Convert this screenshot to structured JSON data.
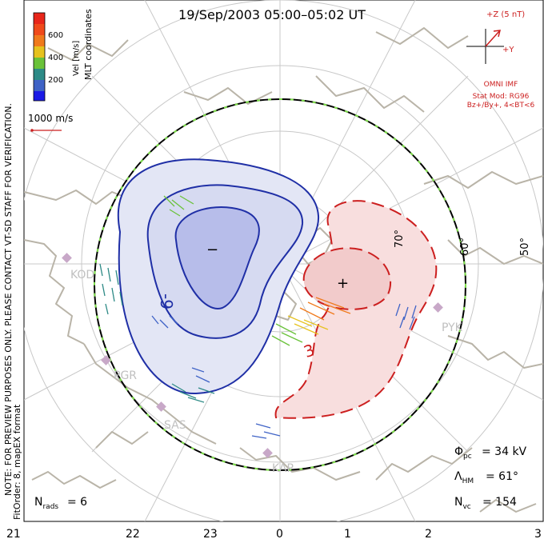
{
  "title": "19/Sep/2003 05:00–05:02 UT",
  "color_scale": {
    "label": "Vel [m/s]",
    "ticks": [
      "600",
      "400",
      "200"
    ],
    "colors": [
      "#e8261a",
      "#f07a1c",
      "#e6c21e",
      "#6ac23a",
      "#2d8a86",
      "#3f63c6",
      "#1a1ae6"
    ]
  },
  "coords_label": "MLT coordinates",
  "vector_scale_label": "1000 m/s",
  "side_note_1": "NOTE: FOR PREVIEW PURPOSES ONLY. PLEASE CONTACT VT-SD STAFF FOR VERIFICATION.",
  "side_note_2": "FitOrder: 8, mapEX format",
  "imf": {
    "z_label": "+Z (5 nT)",
    "y_label": "+Y",
    "source": "OMNI IMF",
    "stat_mod": "Stat Mod: RG96",
    "condition": "Bz+/By+, 4<BT<6"
  },
  "stats": {
    "phi_pc": "= 34 kV",
    "lambda_hm": "= 61°",
    "n_vc": "= 154",
    "n_rads": "= 6"
  },
  "mlt_axis": [
    "21",
    "22",
    "23",
    "0",
    "1",
    "2",
    "3"
  ],
  "lat_labels": [
    "50°",
    "60°",
    "70°"
  ],
  "contours": {
    "negative_labels": [
      "-9",
      "−"
    ],
    "positive_labels": [
      "3",
      "+"
    ],
    "negative_color": "#1f2fa6",
    "positive_color": "#cc1f1f"
  },
  "stations": [
    "KOD",
    "PGR",
    "SAS",
    "KAP",
    "PYK"
  ]
}
